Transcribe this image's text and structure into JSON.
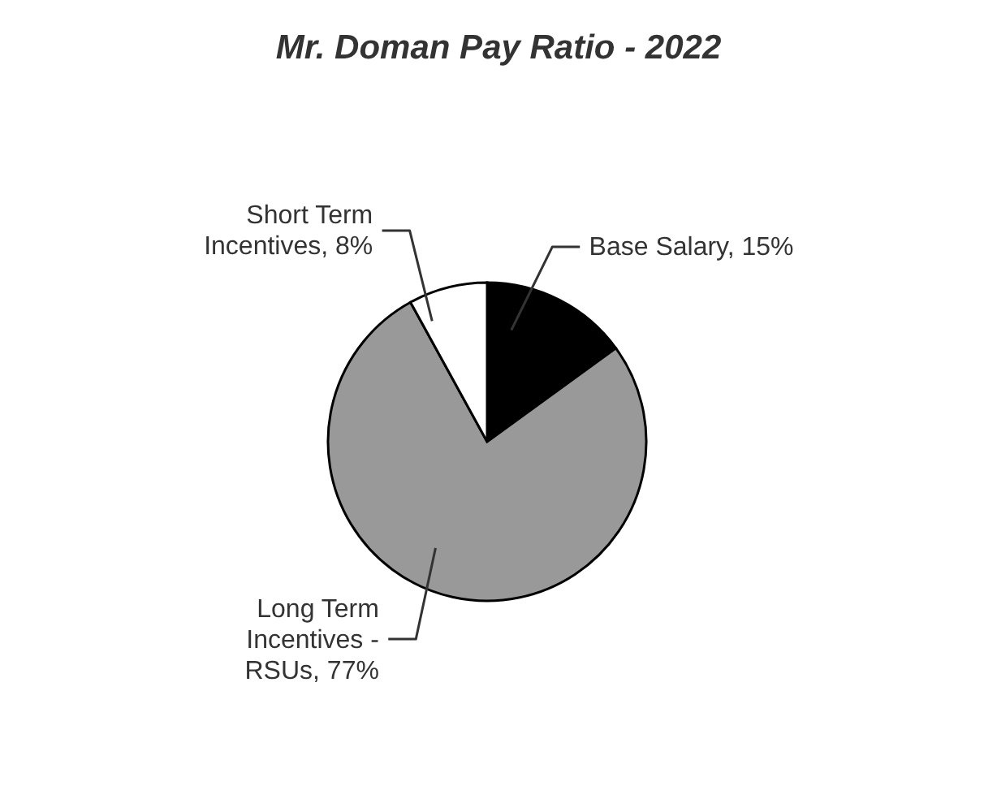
{
  "chart_data": {
    "type": "pie",
    "title": "Mr. Doman Pay Ratio - 2022",
    "categories": [
      "Base Salary",
      "Long Term Incentives - RSUs",
      "Short Term Incentives"
    ],
    "values": [
      15,
      77,
      8
    ],
    "value_labels": [
      "15%",
      "77%",
      "8%"
    ],
    "colors": [
      "#000000",
      "#999999",
      "#ffffff"
    ]
  }
}
